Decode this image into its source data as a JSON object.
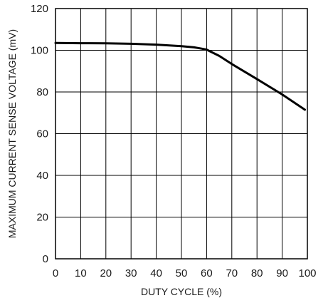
{
  "chart_data": {
    "type": "line",
    "xlabel": "DUTY CYCLE (%)",
    "ylabel": "MAXIMUM CURRENT SENSE VOLTAGE (mV)",
    "xlim": [
      0,
      100
    ],
    "ylim": [
      0,
      120
    ],
    "xticks": [
      0,
      10,
      20,
      30,
      40,
      50,
      60,
      70,
      80,
      90,
      100
    ],
    "yticks": [
      0,
      20,
      40,
      60,
      80,
      100,
      120
    ],
    "grid": true,
    "series": [
      {
        "x": [
          0,
          10,
          20,
          30,
          40,
          50,
          55,
          58,
          60,
          65,
          70,
          80,
          90,
          99
        ],
        "y": [
          103.5,
          103.4,
          103.3,
          103.1,
          102.7,
          102.0,
          101.4,
          100.8,
          100.3,
          97.3,
          93.4,
          86.2,
          78.8,
          71.5
        ]
      }
    ]
  }
}
